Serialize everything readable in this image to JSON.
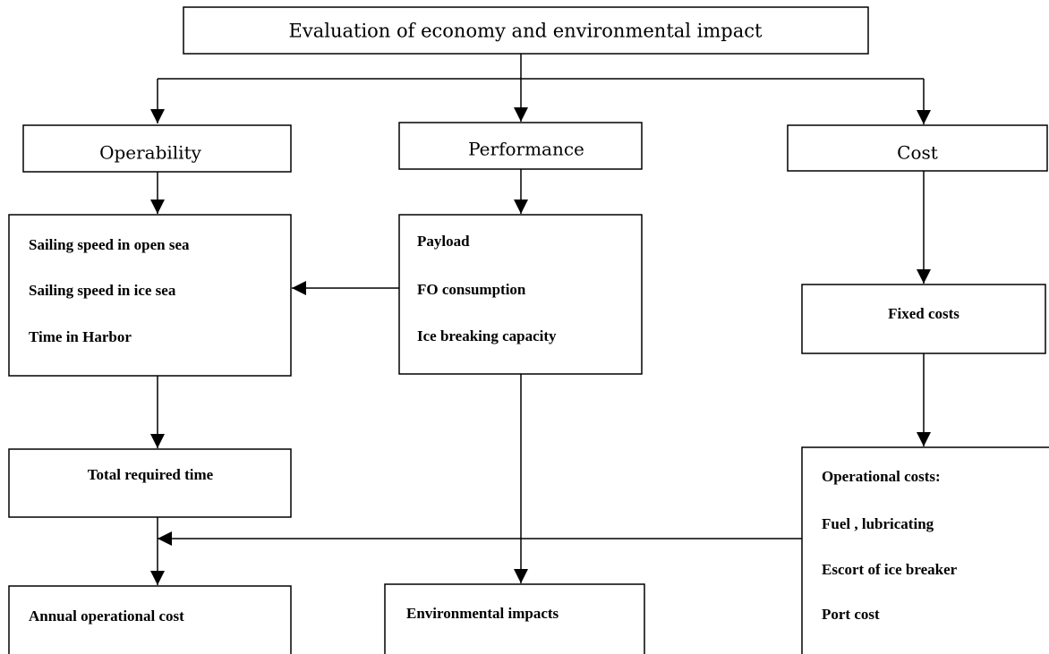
{
  "title": "Evaluation of economy and environmental impact",
  "nodes": [
    {
      "label": "Operability"
    },
    {
      "label": "Performance"
    },
    {
      "label": "Cost"
    },
    {
      "items": [
        "Sailing speed in open sea",
        "Sailing speed in ice sea",
        "Time in Harbor"
      ]
    },
    {
      "items": [
        "Payload",
        "FO consumption",
        "Ice breaking capacity"
      ]
    },
    {
      "label": "Fixed costs"
    },
    {
      "label": "Total required time"
    },
    {
      "items": [
        "Operational costs:",
        "Fuel , lubricating",
        "Escort of ice breaker",
        "Port cost"
      ]
    },
    {
      "label": "Annual operational cost"
    },
    {
      "label": "Environmental impacts"
    }
  ]
}
